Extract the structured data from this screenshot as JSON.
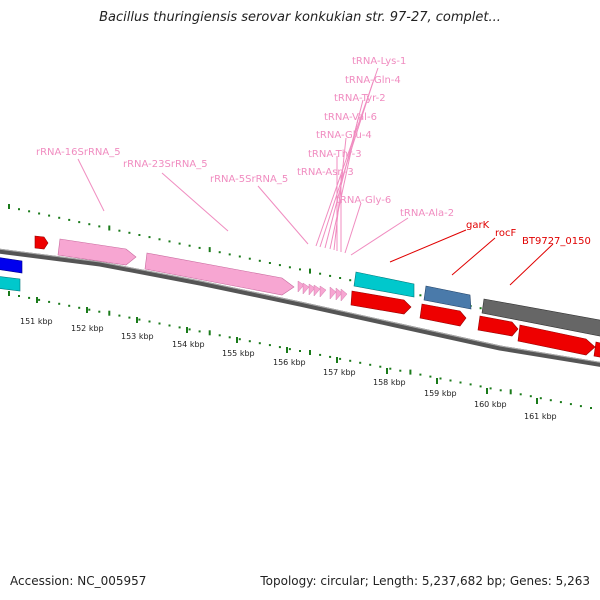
{
  "title": "Bacillus thuringiensis serovar konkukian str. 97-27, complet...",
  "footer": {
    "accession": "Accession: NC_005957",
    "summary": "Topology: circular; Length: 5,237,682 bp; Genes: 5,263"
  },
  "colors": {
    "rna": "#f7a6d2",
    "rna_label": "#f08cc0",
    "cds_red": "#ee0000",
    "cds_blue": "#0000ee",
    "cds_cyan": "#00c8cc",
    "cds_steel": "#4a7aaa",
    "cds_gray": "#666666",
    "gc_dots": "#1a7a1a"
  },
  "scale": {
    "unit": "kbp",
    "labels": [
      "151 kbp",
      "152 kbp",
      "153 kbp",
      "154 kbp",
      "155 kbp",
      "156 kbp",
      "157 kbp",
      "158 kbp",
      "159 kbp",
      "160 kbp",
      "161 kbp"
    ]
  },
  "rna_labels": [
    "rRNA-16SrRNA_5",
    "rRNA-23SrRNA_5",
    "rRNA-5SrRNA_5",
    "tRNA-Lys-1",
    "tRNA-Gln-4",
    "tRNA-Tyr-2",
    "tRNA-Val-6",
    "tRNA-Glu-4",
    "tRNA-Thr-3",
    "tRNA-Asn-3",
    "tRNA-Gly-6",
    "tRNA-Ala-2"
  ],
  "gene_labels": [
    "garK",
    "rocF",
    "BT9727_0150"
  ]
}
